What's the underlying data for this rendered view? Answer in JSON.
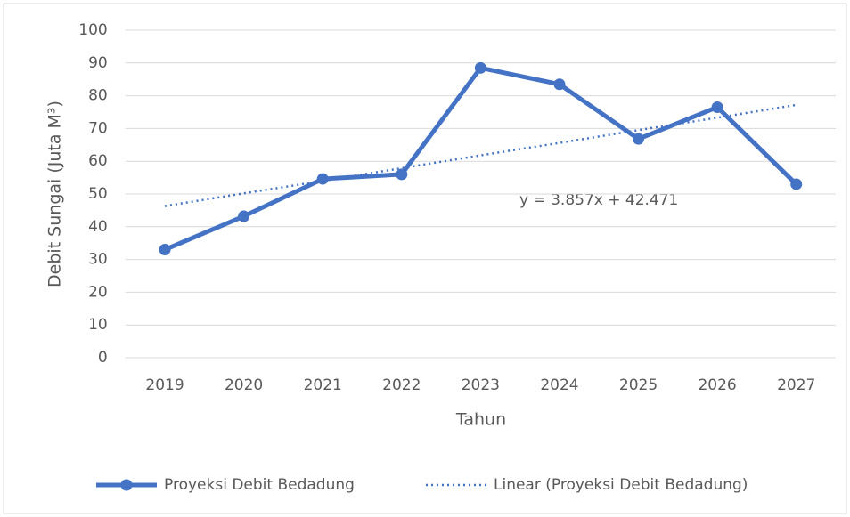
{
  "chart_data": {
    "type": "line",
    "x_label": "Tahun",
    "y_label": "Debit Sungai (Juta M³)",
    "annotation": "y = 3.857x + 42.471",
    "categories": [
      "2019",
      "2020",
      "2021",
      "2022",
      "2023",
      "2024",
      "2025",
      "2026",
      "2027"
    ],
    "series": [
      {
        "name": "Proyeksi Debit Bedadung",
        "color": "#4472c4",
        "style": "solid",
        "markers": true,
        "values": [
          33,
          43.2,
          54.6,
          56,
          88.5,
          83.5,
          66.8,
          76.5,
          53
        ]
      },
      {
        "name": "Linear (Proyeksi Debit Bedadung)",
        "color": "#4472c4",
        "style": "dotted",
        "markers": false,
        "values": [
          46.3,
          50.2,
          54.0,
          57.9,
          61.8,
          65.6,
          69.5,
          73.3,
          77.2
        ]
      }
    ],
    "ylim": [
      0,
      100
    ],
    "yticks": [
      0,
      10,
      20,
      30,
      40,
      50,
      60,
      70,
      80,
      90,
      100
    ],
    "grid": true,
    "legend": "bottom"
  }
}
